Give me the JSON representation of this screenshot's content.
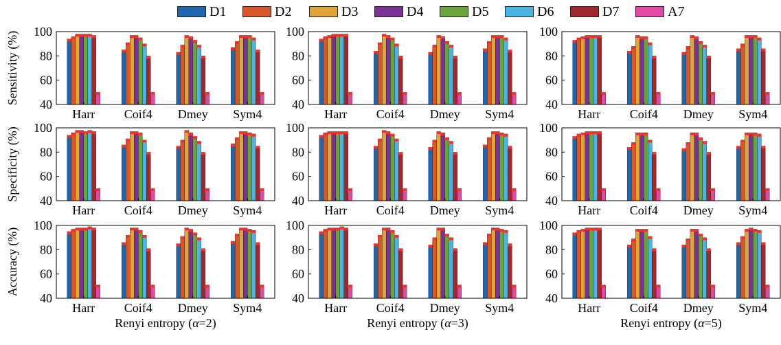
{
  "legend": [
    {
      "label": "D1",
      "color": "#2166ac"
    },
    {
      "label": "D2",
      "color": "#d6582b"
    },
    {
      "label": "D3",
      "color": "#e0a53a"
    },
    {
      "label": "D4",
      "color": "#7b3294"
    },
    {
      "label": "D5",
      "color": "#6aa43d"
    },
    {
      "label": "D6",
      "color": "#4db3e0"
    },
    {
      "label": "D7",
      "color": "#9e2a2f"
    },
    {
      "label": "A7",
      "color": "#e04aa6"
    }
  ],
  "chart_data": [
    {
      "type": "bar",
      "row": 0,
      "col": 0,
      "ylabel": "Sensitivity (%)",
      "xlabel": "",
      "ylim": [
        40,
        100
      ],
      "yticks": [
        40,
        60,
        80,
        100
      ],
      "categories": [
        "Harr",
        "Coif4",
        "Dmey",
        "Sym4"
      ],
      "series": [
        {
          "name": "D1",
          "values": [
            93,
            84,
            82,
            86
          ]
        },
        {
          "name": "D2",
          "values": [
            95,
            90,
            88,
            91
          ]
        },
        {
          "name": "D3",
          "values": [
            97,
            96,
            96,
            96
          ]
        },
        {
          "name": "D4",
          "values": [
            97,
            96,
            95,
            96
          ]
        },
        {
          "name": "D5",
          "values": [
            97,
            94,
            92,
            96
          ]
        },
        {
          "name": "D6",
          "values": [
            97,
            89,
            88,
            94
          ]
        },
        {
          "name": "D7",
          "values": [
            96,
            79,
            79,
            84
          ]
        },
        {
          "name": "A7",
          "values": [
            49,
            49,
            49,
            49
          ]
        }
      ]
    },
    {
      "type": "bar",
      "row": 0,
      "col": 1,
      "ylabel": "",
      "xlabel": "",
      "ylim": [
        40,
        100
      ],
      "yticks": [
        40,
        60,
        80,
        100
      ],
      "categories": [
        "Harr",
        "Coif4",
        "Dmey",
        "Sym4"
      ],
      "series": [
        {
          "name": "D1",
          "values": [
            93,
            83,
            82,
            85
          ]
        },
        {
          "name": "D2",
          "values": [
            95,
            90,
            88,
            91
          ]
        },
        {
          "name": "D3",
          "values": [
            96,
            97,
            96,
            96
          ]
        },
        {
          "name": "D4",
          "values": [
            97,
            96,
            95,
            96
          ]
        },
        {
          "name": "D5",
          "values": [
            97,
            94,
            91,
            96
          ]
        },
        {
          "name": "D6",
          "values": [
            97,
            89,
            88,
            94
          ]
        },
        {
          "name": "D7",
          "values": [
            97,
            79,
            79,
            84
          ]
        },
        {
          "name": "A7",
          "values": [
            49,
            49,
            49,
            49
          ]
        }
      ]
    },
    {
      "type": "bar",
      "row": 0,
      "col": 2,
      "ylabel": "",
      "xlabel": "",
      "ylim": [
        40,
        100
      ],
      "yticks": [
        40,
        60,
        80,
        100
      ],
      "categories": [
        "Harr",
        "Coif4",
        "Dmey",
        "Sym4"
      ],
      "series": [
        {
          "name": "D1",
          "values": [
            92,
            83,
            82,
            85
          ]
        },
        {
          "name": "D2",
          "values": [
            94,
            87,
            87,
            89
          ]
        },
        {
          "name": "D3",
          "values": [
            95,
            96,
            96,
            96
          ]
        },
        {
          "name": "D4",
          "values": [
            96,
            95,
            95,
            96
          ]
        },
        {
          "name": "D5",
          "values": [
            96,
            95,
            91,
            96
          ]
        },
        {
          "name": "D6",
          "values": [
            96,
            90,
            88,
            94
          ]
        },
        {
          "name": "D7",
          "values": [
            96,
            79,
            79,
            85
          ]
        },
        {
          "name": "A7",
          "values": [
            49,
            49,
            49,
            49
          ]
        }
      ]
    },
    {
      "type": "bar",
      "row": 1,
      "col": 0,
      "ylabel": "Specificity (%)",
      "xlabel": "",
      "ylim": [
        40,
        100
      ],
      "yticks": [
        40,
        60,
        80,
        100
      ],
      "categories": [
        "Harr",
        "Coif4",
        "Dmey",
        "Sym4"
      ],
      "series": [
        {
          "name": "D1",
          "values": [
            93,
            85,
            84,
            86
          ]
        },
        {
          "name": "D2",
          "values": [
            95,
            90,
            89,
            91
          ]
        },
        {
          "name": "D3",
          "values": [
            97,
            96,
            97,
            96
          ]
        },
        {
          "name": "D4",
          "values": [
            97,
            96,
            95,
            96
          ]
        },
        {
          "name": "D5",
          "values": [
            96,
            95,
            92,
            95
          ]
        },
        {
          "name": "D6",
          "values": [
            97,
            89,
            88,
            94
          ]
        },
        {
          "name": "D7",
          "values": [
            96,
            79,
            79,
            84
          ]
        },
        {
          "name": "A7",
          "values": [
            49,
            49,
            49,
            49
          ]
        }
      ]
    },
    {
      "type": "bar",
      "row": 1,
      "col": 1,
      "ylabel": "",
      "xlabel": "",
      "ylim": [
        40,
        100
      ],
      "yticks": [
        40,
        60,
        80,
        100
      ],
      "categories": [
        "Harr",
        "Coif4",
        "Dmey",
        "Sym4"
      ],
      "series": [
        {
          "name": "D1",
          "values": [
            93,
            84,
            83,
            85
          ]
        },
        {
          "name": "D2",
          "values": [
            95,
            90,
            89,
            91
          ]
        },
        {
          "name": "D3",
          "values": [
            96,
            97,
            96,
            96
          ]
        },
        {
          "name": "D4",
          "values": [
            96,
            96,
            95,
            96
          ]
        },
        {
          "name": "D5",
          "values": [
            96,
            94,
            91,
            95
          ]
        },
        {
          "name": "D6",
          "values": [
            96,
            90,
            88,
            94
          ]
        },
        {
          "name": "D7",
          "values": [
            96,
            79,
            79,
            84
          ]
        },
        {
          "name": "A7",
          "values": [
            49,
            49,
            49,
            49
          ]
        }
      ]
    },
    {
      "type": "bar",
      "row": 1,
      "col": 2,
      "ylabel": "",
      "xlabel": "",
      "ylim": [
        40,
        100
      ],
      "yticks": [
        40,
        60,
        80,
        100
      ],
      "categories": [
        "Harr",
        "Coif4",
        "Dmey",
        "Sym4"
      ],
      "series": [
        {
          "name": "D1",
          "values": [
            92,
            83,
            82,
            84
          ]
        },
        {
          "name": "D2",
          "values": [
            94,
            87,
            87,
            89
          ]
        },
        {
          "name": "D3",
          "values": [
            95,
            95,
            95,
            95
          ]
        },
        {
          "name": "D4",
          "values": [
            96,
            95,
            95,
            95
          ]
        },
        {
          "name": "D5",
          "values": [
            96,
            95,
            91,
            95
          ]
        },
        {
          "name": "D6",
          "values": [
            96,
            89,
            88,
            94
          ]
        },
        {
          "name": "D7",
          "values": [
            96,
            79,
            79,
            84
          ]
        },
        {
          "name": "A7",
          "values": [
            49,
            49,
            49,
            49
          ]
        }
      ]
    },
    {
      "type": "bar",
      "row": 2,
      "col": 0,
      "ylabel": "Accuracy (%)",
      "xlabel": "Renyi entropy (α=2)",
      "ylim": [
        40,
        100
      ],
      "yticks": [
        40,
        60,
        80,
        100
      ],
      "categories": [
        "Harr",
        "Coif4",
        "Dmey",
        "Sym4"
      ],
      "series": [
        {
          "name": "D1",
          "values": [
            94,
            85,
            84,
            86
          ]
        },
        {
          "name": "D2",
          "values": [
            96,
            91,
            90,
            92
          ]
        },
        {
          "name": "D3",
          "values": [
            97,
            97,
            97,
            97
          ]
        },
        {
          "name": "D4",
          "values": [
            97,
            97,
            96,
            97
          ]
        },
        {
          "name": "D5",
          "values": [
            97,
            95,
            93,
            96
          ]
        },
        {
          "name": "D6",
          "values": [
            98,
            91,
            89,
            95
          ]
        },
        {
          "name": "D7",
          "values": [
            97,
            80,
            80,
            85
          ]
        },
        {
          "name": "A7",
          "values": [
            50,
            50,
            50,
            50
          ]
        }
      ]
    },
    {
      "type": "bar",
      "row": 2,
      "col": 1,
      "ylabel": "",
      "xlabel": "Renyi entropy (α=3)",
      "ylim": [
        40,
        100
      ],
      "yticks": [
        40,
        60,
        80,
        100
      ],
      "categories": [
        "Harr",
        "Coif4",
        "Dmey",
        "Sym4"
      ],
      "series": [
        {
          "name": "D1",
          "values": [
            94,
            84,
            83,
            85
          ]
        },
        {
          "name": "D2",
          "values": [
            96,
            91,
            89,
            92
          ]
        },
        {
          "name": "D3",
          "values": [
            97,
            97,
            97,
            97
          ]
        },
        {
          "name": "D4",
          "values": [
            97,
            97,
            97,
            97
          ]
        },
        {
          "name": "D5",
          "values": [
            97,
            95,
            92,
            96
          ]
        },
        {
          "name": "D6",
          "values": [
            98,
            91,
            89,
            95
          ]
        },
        {
          "name": "D7",
          "values": [
            97,
            80,
            80,
            84
          ]
        },
        {
          "name": "A7",
          "values": [
            50,
            50,
            50,
            50
          ]
        }
      ]
    },
    {
      "type": "bar",
      "row": 2,
      "col": 2,
      "ylabel": "",
      "xlabel": "Renyi entropy (α=5)",
      "ylim": [
        40,
        100
      ],
      "yticks": [
        40,
        60,
        80,
        100
      ],
      "categories": [
        "Harr",
        "Coif4",
        "Dmey",
        "Sym4"
      ],
      "series": [
        {
          "name": "D1",
          "values": [
            93,
            83,
            83,
            85
          ]
        },
        {
          "name": "D2",
          "values": [
            95,
            88,
            88,
            90
          ]
        },
        {
          "name": "D3",
          "values": [
            96,
            96,
            96,
            96
          ]
        },
        {
          "name": "D4",
          "values": [
            97,
            96,
            96,
            97
          ]
        },
        {
          "name": "D5",
          "values": [
            97,
            96,
            92,
            96
          ]
        },
        {
          "name": "D6",
          "values": [
            97,
            90,
            89,
            95
          ]
        },
        {
          "name": "D7",
          "values": [
            97,
            80,
            80,
            85
          ]
        },
        {
          "name": "A7",
          "values": [
            50,
            50,
            50,
            50
          ]
        }
      ]
    }
  ]
}
